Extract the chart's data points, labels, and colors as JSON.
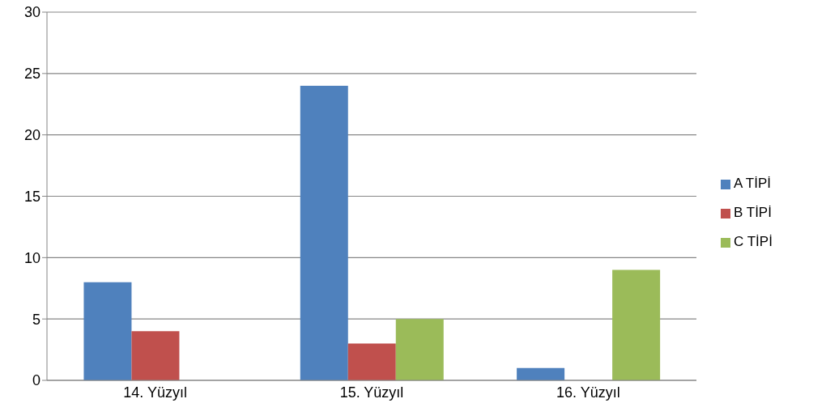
{
  "chart_data": {
    "type": "bar",
    "categories": [
      "14. Yüzyıl",
      "15. Yüzyıl",
      "16. Yüzyıl"
    ],
    "series": [
      {
        "name": "A TİPİ",
        "color": "#4f81bd",
        "values": [
          8,
          24,
          1
        ]
      },
      {
        "name": "B TİPİ",
        "color": "#c0504d",
        "values": [
          4,
          3,
          0
        ]
      },
      {
        "name": "C TİPİ",
        "color": "#9bbb59",
        "values": [
          0,
          5,
          9
        ]
      }
    ],
    "ylim": [
      0,
      30
    ],
    "yticks": [
      0,
      5,
      10,
      15,
      20,
      25,
      30
    ],
    "grid": "y",
    "legend": "right"
  }
}
